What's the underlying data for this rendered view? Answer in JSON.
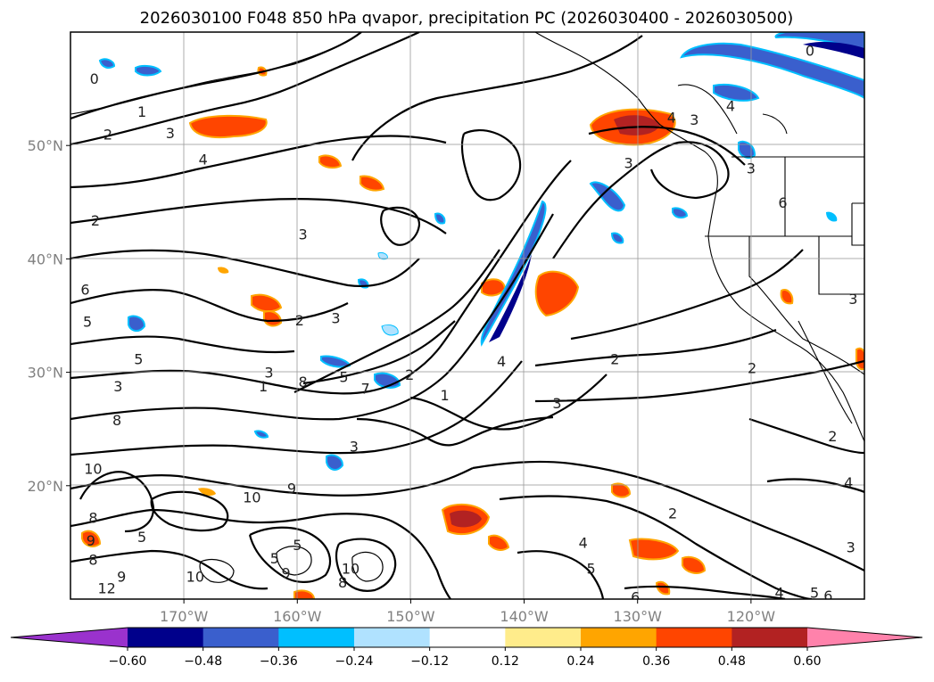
{
  "chart_data": {
    "type": "heatmap",
    "title": "2026030100 F048 850 hPa qvapor, precipitation PC (2026030400 - 2026030500)",
    "xlabel": "",
    "ylabel": "",
    "xlim": [
      -180,
      -110
    ],
    "ylim": [
      10,
      60
    ],
    "grid": true,
    "y_ticks": [
      {
        "value": 50,
        "label": "50°N"
      },
      {
        "value": 40,
        "label": "40°N"
      },
      {
        "value": 30,
        "label": "30°N"
      },
      {
        "value": 20,
        "label": "20°N"
      }
    ],
    "x_ticks": [
      {
        "value": -170,
        "label": "170°W"
      },
      {
        "value": -160,
        "label": "160°W"
      },
      {
        "value": -150,
        "label": "150°W"
      },
      {
        "value": -140,
        "label": "140°W"
      },
      {
        "value": -130,
        "label": "130°W"
      },
      {
        "value": -120,
        "label": "120°W"
      }
    ],
    "colorbar": {
      "levels": [
        -0.6,
        -0.48,
        -0.36,
        -0.24,
        -0.12,
        0.12,
        0.24,
        0.36,
        0.48,
        0.6
      ],
      "tick_labels": [
        "−0.60",
        "−0.48",
        "−0.36",
        "−0.24",
        "−0.12",
        "0.12",
        "0.24",
        "0.36",
        "0.48",
        "0.60"
      ],
      "colors": [
        "#9a32cd",
        "#00008b",
        "#3a5fcd",
        "#00bfff",
        "#b0e2ff",
        "#ffffff",
        "#ffec8b",
        "#ffa500",
        "#ff4500",
        "#b22222",
        "#ff82ab"
      ],
      "extend": "both"
    },
    "contour_labels": [
      {
        "text": "0",
        "lon": -177.9,
        "lat": 55.9
      },
      {
        "text": "1",
        "lon": -173.7,
        "lat": 53.0
      },
      {
        "text": "2",
        "lon": -176.7,
        "lat": 51.0
      },
      {
        "text": "3",
        "lon": -171.2,
        "lat": 51.1
      },
      {
        "text": "4",
        "lon": -168.3,
        "lat": 48.8
      },
      {
        "text": "2",
        "lon": -177.8,
        "lat": 43.4
      },
      {
        "text": "3",
        "lon": -159.5,
        "lat": 42.2
      },
      {
        "text": "6",
        "lon": -178.7,
        "lat": 37.3
      },
      {
        "text": "5",
        "lon": -178.5,
        "lat": 34.5
      },
      {
        "text": "2",
        "lon": -159.8,
        "lat": 34.6
      },
      {
        "text": "3",
        "lon": -156.6,
        "lat": 34.8
      },
      {
        "text": "5",
        "lon": -174.0,
        "lat": 31.2
      },
      {
        "text": "3",
        "lon": -175.8,
        "lat": 28.8
      },
      {
        "text": "8",
        "lon": -175.9,
        "lat": 25.8
      },
      {
        "text": "3",
        "lon": -162.5,
        "lat": 30.0
      },
      {
        "text": "1",
        "lon": -163.0,
        "lat": 28.8
      },
      {
        "text": "8",
        "lon": -159.5,
        "lat": 29.2
      },
      {
        "text": "5",
        "lon": -155.9,
        "lat": 29.6
      },
      {
        "text": "7",
        "lon": -154.0,
        "lat": 28.6
      },
      {
        "text": "2",
        "lon": -150.1,
        "lat": 29.8
      },
      {
        "text": "1",
        "lon": -147.0,
        "lat": 28.0
      },
      {
        "text": "3",
        "lon": -155.0,
        "lat": 23.5
      },
      {
        "text": "4",
        "lon": -142.0,
        "lat": 31.0
      },
      {
        "text": "2",
        "lon": -132.0,
        "lat": 31.2
      },
      {
        "text": "3",
        "lon": -137.1,
        "lat": 27.3
      },
      {
        "text": "10",
        "lon": -178.0,
        "lat": 21.5
      },
      {
        "text": "10",
        "lon": -164.0,
        "lat": 19.0
      },
      {
        "text": "9",
        "lon": -160.5,
        "lat": 19.8
      },
      {
        "text": "8",
        "lon": -178.0,
        "lat": 17.2
      },
      {
        "text": "5",
        "lon": -173.7,
        "lat": 15.5
      },
      {
        "text": "5",
        "lon": -162.0,
        "lat": 13.6
      },
      {
        "text": "5",
        "lon": -160.0,
        "lat": 14.8
      },
      {
        "text": "9",
        "lon": -178.2,
        "lat": 15.2
      },
      {
        "text": "8",
        "lon": -178.0,
        "lat": 13.5
      },
      {
        "text": "9",
        "lon": -175.5,
        "lat": 12.0
      },
      {
        "text": "10",
        "lon": -169.0,
        "lat": 12.0
      },
      {
        "text": "12",
        "lon": -176.8,
        "lat": 11.0
      },
      {
        "text": "9",
        "lon": -161.0,
        "lat": 12.3
      },
      {
        "text": "10",
        "lon": -155.3,
        "lat": 12.7
      },
      {
        "text": "8",
        "lon": -156.0,
        "lat": 11.5
      },
      {
        "text": "3",
        "lon": -130.8,
        "lat": 48.5
      },
      {
        "text": "4",
        "lon": -127.0,
        "lat": 52.5
      },
      {
        "text": "3",
        "lon": -125.0,
        "lat": 52.3
      },
      {
        "text": "4",
        "lon": -121.8,
        "lat": 53.5
      },
      {
        "text": "3",
        "lon": -120.0,
        "lat": 48.0
      },
      {
        "text": "0",
        "lon": -114.8,
        "lat": 58.4
      },
      {
        "text": "6",
        "lon": -117.2,
        "lat": 45.0
      },
      {
        "text": "3",
        "lon": -111.0,
        "lat": 36.5
      },
      {
        "text": "4",
        "lon": -134.8,
        "lat": 15.0
      },
      {
        "text": "2",
        "lon": -126.9,
        "lat": 17.6
      },
      {
        "text": "4",
        "lon": -111.4,
        "lat": 20.3
      },
      {
        "text": "2",
        "lon": -112.8,
        "lat": 24.4
      },
      {
        "text": "3",
        "lon": -111.2,
        "lat": 14.6
      },
      {
        "text": "4",
        "lon": -117.5,
        "lat": 10.6
      },
      {
        "text": "5",
        "lon": -114.4,
        "lat": 10.6
      },
      {
        "text": "6",
        "lon": -113.2,
        "lat": 10.3
      },
      {
        "text": "5",
        "lon": -134.1,
        "lat": 12.7
      },
      {
        "text": "6",
        "lon": -130.2,
        "lat": 10.2
      },
      {
        "text": "2",
        "lon": -119.9,
        "lat": 30.4
      }
    ]
  }
}
